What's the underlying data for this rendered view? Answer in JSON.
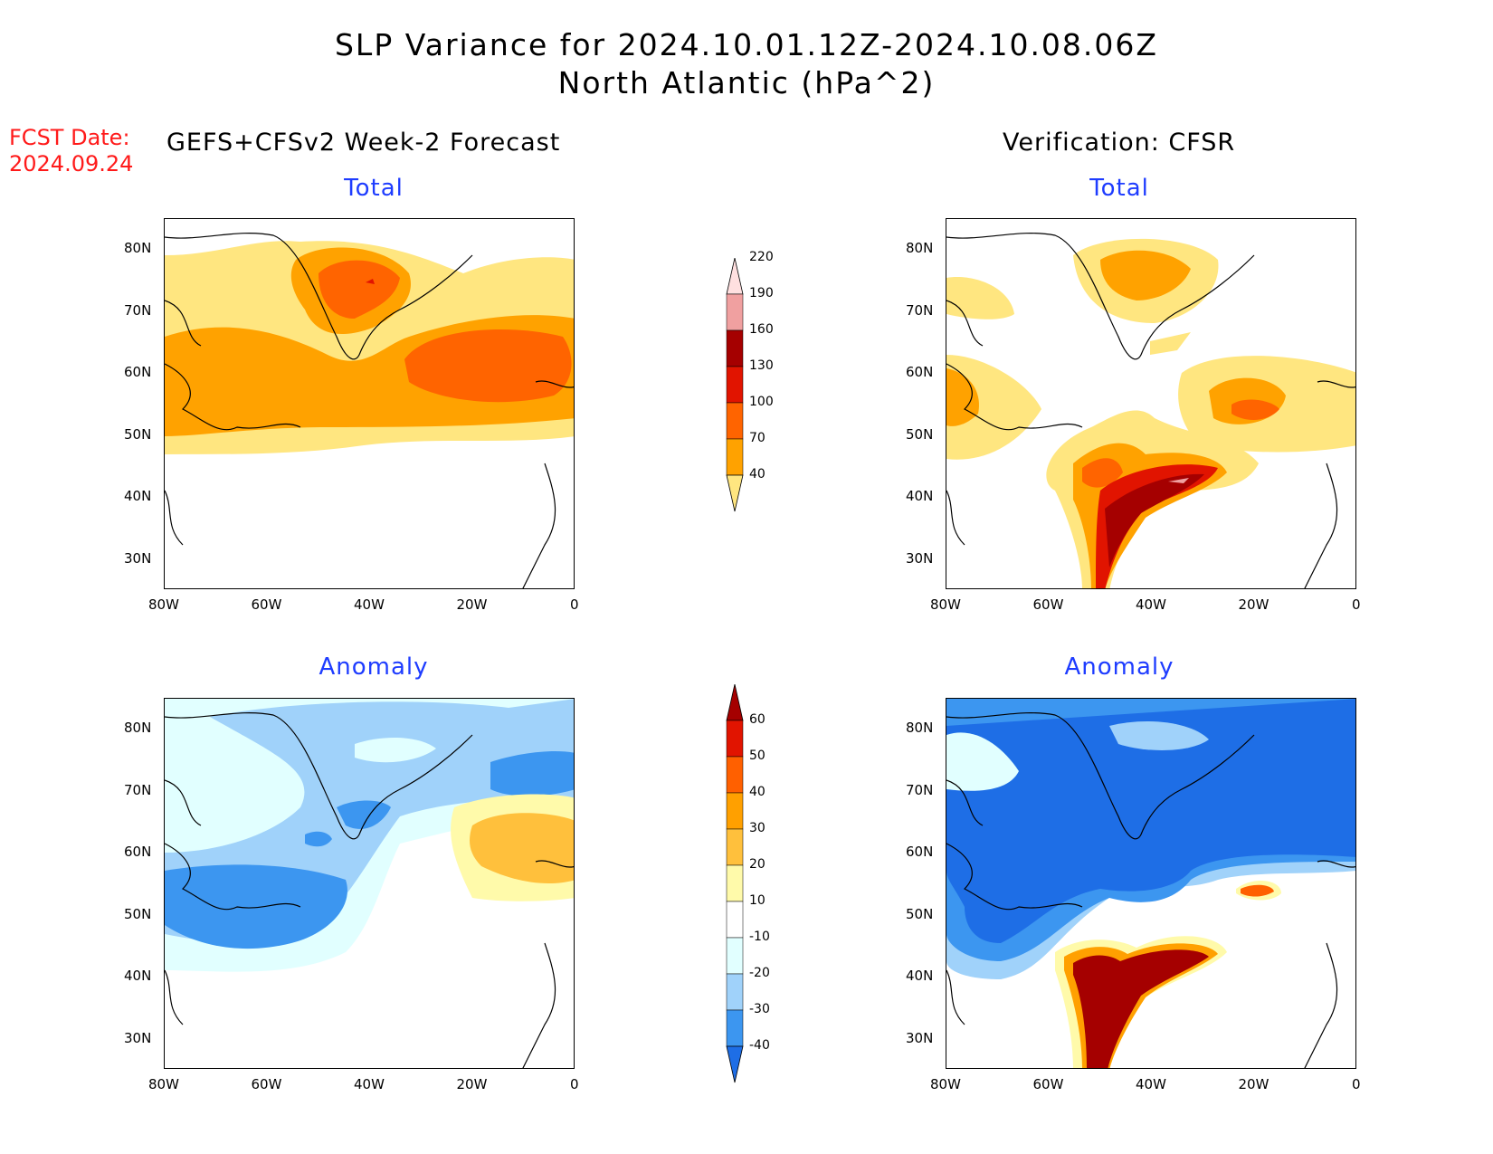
{
  "title_line1": "SLP Variance for 2024.10.01.12Z-2024.10.08.06Z",
  "title_line2": "North Atlantic (hPa^2)",
  "fcst_label": "FCST Date:",
  "fcst_date": "2024.09.24",
  "left_column_title": "GEFS+CFSv2 Week-2 Forecast",
  "right_column_title": "Verification: CFSR",
  "panels": {
    "total": "Total",
    "anomaly": "Anomaly"
  },
  "lat_ticks": [
    "80N",
    "70N",
    "60N",
    "50N",
    "40N",
    "30N"
  ],
  "lon_ticks": [
    "80W",
    "60W",
    "40W",
    "20W",
    "0"
  ],
  "total_colorbar": {
    "levels": [
      "40",
      "70",
      "100",
      "130",
      "160",
      "190",
      "220"
    ],
    "colors": [
      "#ffe680",
      "#ffa200",
      "#ff6400",
      "#e11400",
      "#a50000",
      "#f0a0a0",
      "#ffe0e0"
    ]
  },
  "anomaly_colorbar": {
    "levels": [
      "-40",
      "-30",
      "-20",
      "-10",
      "10",
      "20",
      "30",
      "40",
      "50",
      "60"
    ],
    "colors": [
      "#1e6ee6",
      "#3c96f0",
      "#a0d2fa",
      "#e1ffff",
      "#ffffff",
      "#fffaaa",
      "#ffc03c",
      "#ffa000",
      "#ff6000",
      "#e11400",
      "#a50000"
    ]
  }
}
